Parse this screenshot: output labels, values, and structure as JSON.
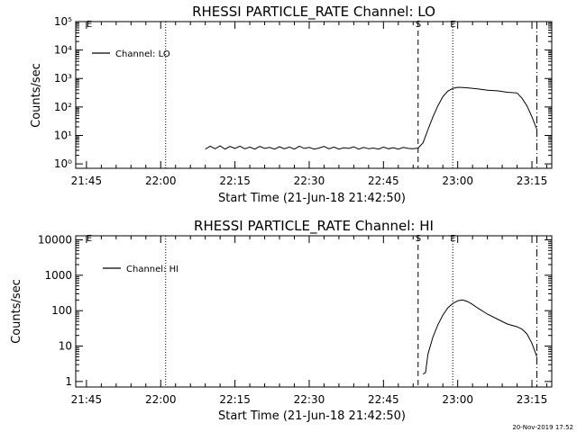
{
  "footer_timestamp": "20-Nov-2019 17:52",
  "chart_data": [
    {
      "type": "line",
      "title": "RHESSI PARTICLE_RATE Channel: LO",
      "xlabel": "Start Time (21-Jun-18 21:42:50)",
      "ylabel": "Counts/sec",
      "yscale": "log",
      "xlim": [
        "21:42:50",
        "23:19:00"
      ],
      "ylim": [
        0.7,
        100000
      ],
      "xticks": [
        "21:45",
        "22:00",
        "22:15",
        "22:30",
        "22:45",
        "23:00",
        "23:15"
      ],
      "yticks": [
        {
          "value": 1,
          "label": "10⁰"
        },
        {
          "value": 10,
          "label": "10¹"
        },
        {
          "value": 100,
          "label": "10²"
        },
        {
          "value": 1000,
          "label": "10³"
        },
        {
          "value": 10000,
          "label": "10⁴"
        },
        {
          "value": 100000,
          "label": "10⁵"
        }
      ],
      "legend": {
        "label": "Channel: LO",
        "position": "top-left"
      },
      "markers": [
        {
          "time": "21:45",
          "label": "E",
          "style": "none"
        },
        {
          "time": "22:01",
          "label": "",
          "style": "dotted"
        },
        {
          "time": "22:52",
          "label": "S",
          "style": "dashed"
        },
        {
          "time": "22:59",
          "label": "E",
          "style": "dotted"
        },
        {
          "time": "23:16",
          "label": "",
          "style": "dashdot"
        }
      ],
      "series": [
        {
          "name": "Channel: LO",
          "x": [
            "22:09:00",
            "22:10:00",
            "22:11:00",
            "22:12:00",
            "22:13:00",
            "22:14:00",
            "22:15:00",
            "22:16:00",
            "22:17:00",
            "22:18:00",
            "22:19:00",
            "22:20:00",
            "22:21:00",
            "22:22:00",
            "22:23:00",
            "22:24:00",
            "22:25:00",
            "22:26:00",
            "22:27:00",
            "22:28:00",
            "22:29:00",
            "22:30:00",
            "22:31:00",
            "22:32:00",
            "22:33:00",
            "22:34:00",
            "22:35:00",
            "22:36:00",
            "22:37:00",
            "22:38:00",
            "22:39:00",
            "22:40:00",
            "22:41:00",
            "22:42:00",
            "22:43:00",
            "22:44:00",
            "22:45:00",
            "22:46:00",
            "22:47:00",
            "22:48:00",
            "22:49:00",
            "22:50:00",
            "22:51:00",
            "22:52:00",
            "22:53:00",
            "22:54:00",
            "22:55:00",
            "22:56:00",
            "22:57:00",
            "22:58:00",
            "22:59:00",
            "23:00:00",
            "23:01:00",
            "23:02:00",
            "23:04:00",
            "23:06:00",
            "23:08:00",
            "23:10:00",
            "23:12:00",
            "23:13:00",
            "23:14:00",
            "23:15:00",
            "23:16:00"
          ],
          "y": [
            3.3,
            4.2,
            3.4,
            4.3,
            3.3,
            4.1,
            3.5,
            4.2,
            3.4,
            3.9,
            3.3,
            4.1,
            3.5,
            3.8,
            3.3,
            4.0,
            3.4,
            3.9,
            3.3,
            4.2,
            3.5,
            3.8,
            3.3,
            3.6,
            4.1,
            3.4,
            3.9,
            3.3,
            3.7,
            3.5,
            4.0,
            3.3,
            3.8,
            3.4,
            3.6,
            3.3,
            3.9,
            3.4,
            3.7,
            3.3,
            3.8,
            3.5,
            3.4,
            3.6,
            5.5,
            16,
            45,
            110,
            230,
            360,
            450,
            490,
            480,
            470,
            430,
            390,
            370,
            330,
            310,
            200,
            110,
            45,
            16
          ]
        }
      ]
    },
    {
      "type": "line",
      "title": "RHESSI PARTICLE_RATE Channel: HI",
      "xlabel": "Start Time (21-Jun-18 21:42:50)",
      "ylabel": "Counts/sec",
      "yscale": "log",
      "xlim": [
        "21:42:50",
        "23:19:00"
      ],
      "ylim": [
        0.7,
        13000
      ],
      "xticks": [
        "21:45",
        "22:00",
        "22:15",
        "22:30",
        "22:45",
        "23:00",
        "23:15"
      ],
      "yticks": [
        {
          "value": 1,
          "label": "1"
        },
        {
          "value": 10,
          "label": "10"
        },
        {
          "value": 100,
          "label": "100"
        },
        {
          "value": 1000,
          "label": "1000"
        },
        {
          "value": 10000,
          "label": "10000"
        }
      ],
      "legend": {
        "label": "Channel: HI",
        "position": "top-left"
      },
      "markers": [
        {
          "time": "21:45",
          "label": "E",
          "style": "none"
        },
        {
          "time": "22:01",
          "label": "",
          "style": "dotted"
        },
        {
          "time": "22:52",
          "label": "S",
          "style": "dashed"
        },
        {
          "time": "22:59",
          "label": "E",
          "style": "dotted"
        },
        {
          "time": "23:16",
          "label": "",
          "style": "dashdot"
        }
      ],
      "series": [
        {
          "name": "Channel: HI",
          "x": [
            "22:53:00",
            "22:53:30",
            "22:54:00",
            "22:55:00",
            "22:56:00",
            "22:57:00",
            "22:58:00",
            "22:59:00",
            "23:00:00",
            "23:01:00",
            "23:02:00",
            "23:03:00",
            "23:04:00",
            "23:06:00",
            "23:08:00",
            "23:10:00",
            "23:12:00",
            "23:13:00",
            "23:14:00",
            "23:15:00",
            "23:16:00"
          ],
          "y": [
            1.6,
            1.8,
            6,
            18,
            40,
            75,
            120,
            160,
            190,
            200,
            180,
            150,
            120,
            80,
            58,
            42,
            35,
            30,
            22,
            12,
            5
          ]
        }
      ]
    }
  ]
}
